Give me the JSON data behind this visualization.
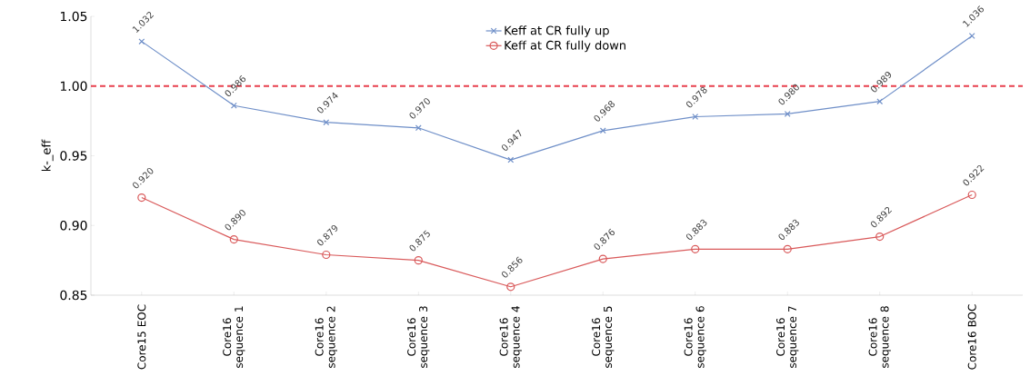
{
  "chart_data": {
    "type": "line",
    "ylabel": "k-_eff",
    "categories": [
      "Core15 EOC",
      "Core16 sequence 1",
      "Core16 sequence 2",
      "Core16 sequence 3",
      "Core16 sequence 4",
      "Core16 sequence 5",
      "Core16 sequence 6",
      "Core16 sequence 7",
      "Core16 sequence 8",
      "Core16 BOC"
    ],
    "series": [
      {
        "name": "Keff at CR fully up",
        "color": "#6f8fc8",
        "marker": "cross",
        "values": [
          1.032,
          0.986,
          0.974,
          0.97,
          0.947,
          0.968,
          0.978,
          0.98,
          0.989,
          1.036
        ],
        "value_labels": [
          "1.032",
          "0.986",
          "0.974",
          "0.970",
          "0.947",
          "0.968",
          "0.978",
          "0.980",
          "0.989",
          "1.036"
        ]
      },
      {
        "name": "Keff at CR fully down",
        "color": "#d9595a",
        "marker": "circle",
        "values": [
          0.92,
          0.89,
          0.879,
          0.875,
          0.856,
          0.876,
          0.883,
          0.883,
          0.892,
          0.922
        ],
        "value_labels": [
          "0.920",
          "0.890",
          "0.879",
          "0.875",
          "0.856",
          "0.876",
          "0.883",
          "0.883",
          "0.892",
          "0.922"
        ]
      }
    ],
    "ylim": [
      0.85,
      1.05
    ],
    "yticks": [
      "0.85",
      "0.90",
      "0.95",
      "1.00",
      "1.05"
    ],
    "ref_lines": [
      {
        "axis": "y",
        "value": 1.0,
        "color": "#e8404e",
        "line_style": "dashed"
      }
    ],
    "legend": "top",
    "grid": false,
    "line_style": "solid"
  }
}
